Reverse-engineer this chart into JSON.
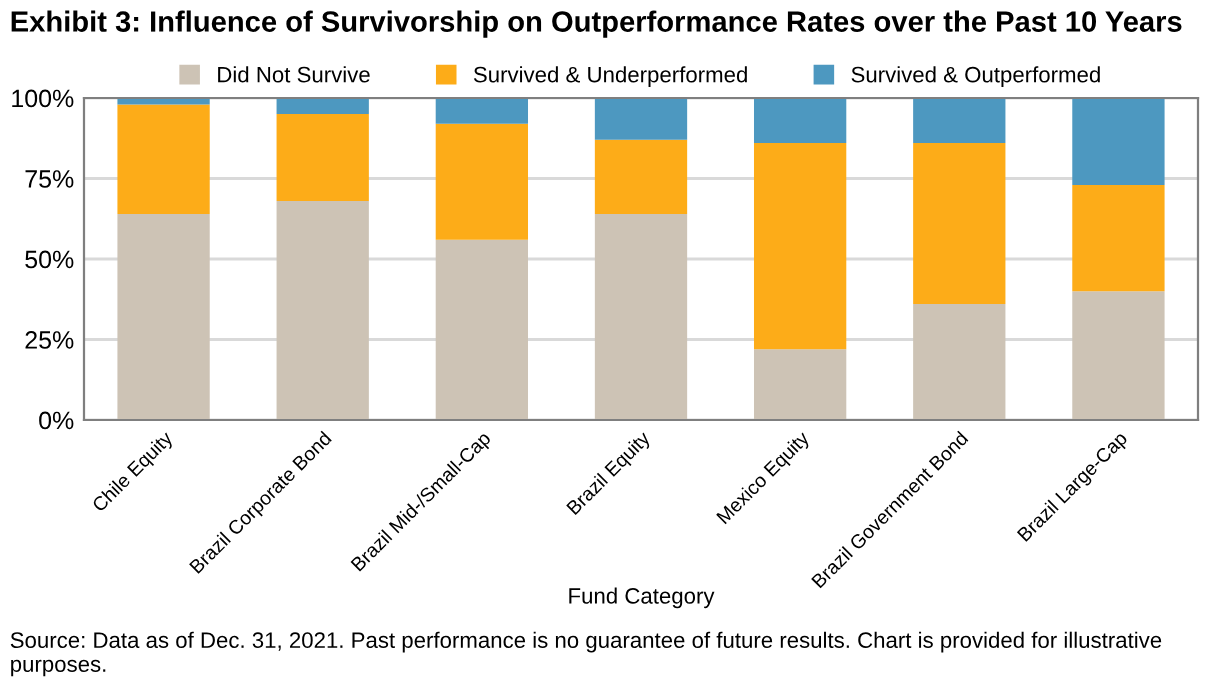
{
  "chart_data": {
    "type": "bar",
    "stacked": true,
    "title": "Exhibit 3: Influence of Survivorship on Outperformance Rates over the Past 10 Years",
    "xlabel": "Fund Category",
    "categories": [
      "Chile Equity",
      "Brazil Corporate Bond",
      "Brazil Mid-/Small-Cap",
      "Brazil Equity",
      "Mexico Equity",
      "Brazil Government Bond",
      "Brazil Large-Cap"
    ],
    "series": [
      {
        "name": "Did Not Survive",
        "color": "#cdc3b5",
        "values": [
          64,
          68,
          56,
          64,
          22,
          36,
          40
        ]
      },
      {
        "name": "Survived & Underperformed",
        "color": "#fdac18",
        "values": [
          34,
          27,
          36,
          23,
          64,
          50,
          33
        ]
      },
      {
        "name": "Survived & Outperformed",
        "color": "#4d98c0",
        "values": [
          2,
          5,
          8,
          13,
          14,
          14,
          27
        ]
      }
    ],
    "ylim": [
      0,
      100
    ],
    "yticks": [
      {
        "value": 0,
        "label": "0%"
      },
      {
        "value": 25,
        "label": "25%"
      },
      {
        "value": 50,
        "label": "50%"
      },
      {
        "value": 75,
        "label": "75%"
      },
      {
        "value": 100,
        "label": "100%"
      }
    ],
    "grid": "y",
    "legend": "top",
    "annotations": [
      "Source: Data as of Dec. 31, 2021. Past performance is no guarantee of future results. Chart is provided for illustrative purposes."
    ]
  }
}
